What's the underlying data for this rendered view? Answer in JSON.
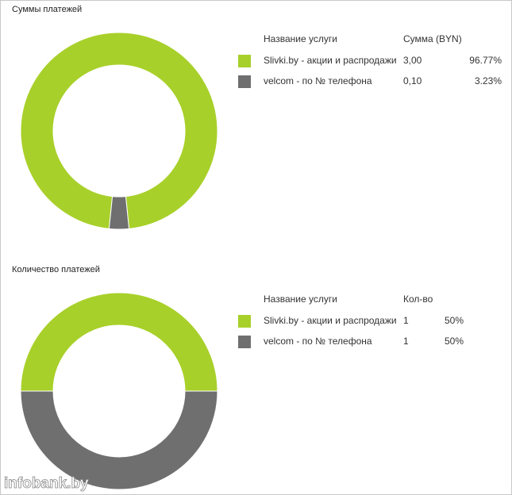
{
  "chart_data": [
    {
      "type": "donut",
      "title": "Суммы платежей",
      "columns": [
        "Название услуги",
        "Сумма (BYN)"
      ],
      "categories": [
        "Slivki.by - акции и распродажи",
        "velcom - по № телефона"
      ],
      "amounts": [
        "3,00",
        "0,10"
      ],
      "values": [
        96.77,
        3.23
      ],
      "value_labels": [
        "96.77%",
        "3.23%"
      ],
      "colors": [
        "#a8d02a",
        "#6f6f6f"
      ]
    },
    {
      "type": "donut",
      "title": "Количество платежей",
      "columns": [
        "Название услуги",
        "Кол-во"
      ],
      "categories": [
        "Slivki.by - акции и распродажи",
        "velcom - по № телефона"
      ],
      "amounts": [
        1,
        1
      ],
      "values": [
        50,
        50
      ],
      "value_labels": [
        "50%",
        "50%"
      ],
      "colors": [
        "#a8d02a",
        "#6f6f6f"
      ]
    }
  ],
  "watermark": "infobank.by"
}
